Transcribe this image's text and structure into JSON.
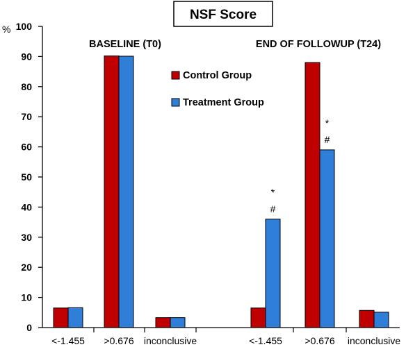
{
  "chart_data": {
    "type": "bar",
    "title": "NSF Score",
    "ylabel": "%",
    "ylim": [
      0,
      100
    ],
    "yticks": [
      0,
      10,
      20,
      30,
      40,
      50,
      60,
      70,
      80,
      90,
      100
    ],
    "grid": false,
    "legend_position": "upper-middle",
    "colors": {
      "Control Group": "#c00000",
      "Treatment Group": "#2f7ed8"
    },
    "groups": [
      {
        "label": "BASELINE (T0)",
        "categories": [
          "<-1.455",
          ">0.676",
          "inconclusive"
        ],
        "series": [
          {
            "name": "Control Group",
            "values": [
              6.5,
              90.2,
              3.3
            ]
          },
          {
            "name": "Treatment Group",
            "values": [
              6.6,
              90.1,
              3.3
            ]
          }
        ]
      },
      {
        "label": "END OF FOLLOWUP (T24)",
        "categories": [
          "<-1.455",
          ">0.676",
          "inconclusive"
        ],
        "series": [
          {
            "name": "Control Group",
            "values": [
              6.5,
              88.0,
              5.7
            ]
          },
          {
            "name": "Treatment Group",
            "values": [
              36.0,
              59.0,
              5.1
            ]
          }
        ],
        "annotations": [
          {
            "category": "<-1.455",
            "series": "Treatment Group",
            "marks": [
              "*",
              "#"
            ]
          },
          {
            "category": ">0.676",
            "series": "Treatment Group",
            "marks": [
              "*",
              "#"
            ]
          }
        ]
      }
    ],
    "legend": [
      {
        "name": "Control Group"
      },
      {
        "name": "Treatment Group"
      }
    ]
  }
}
